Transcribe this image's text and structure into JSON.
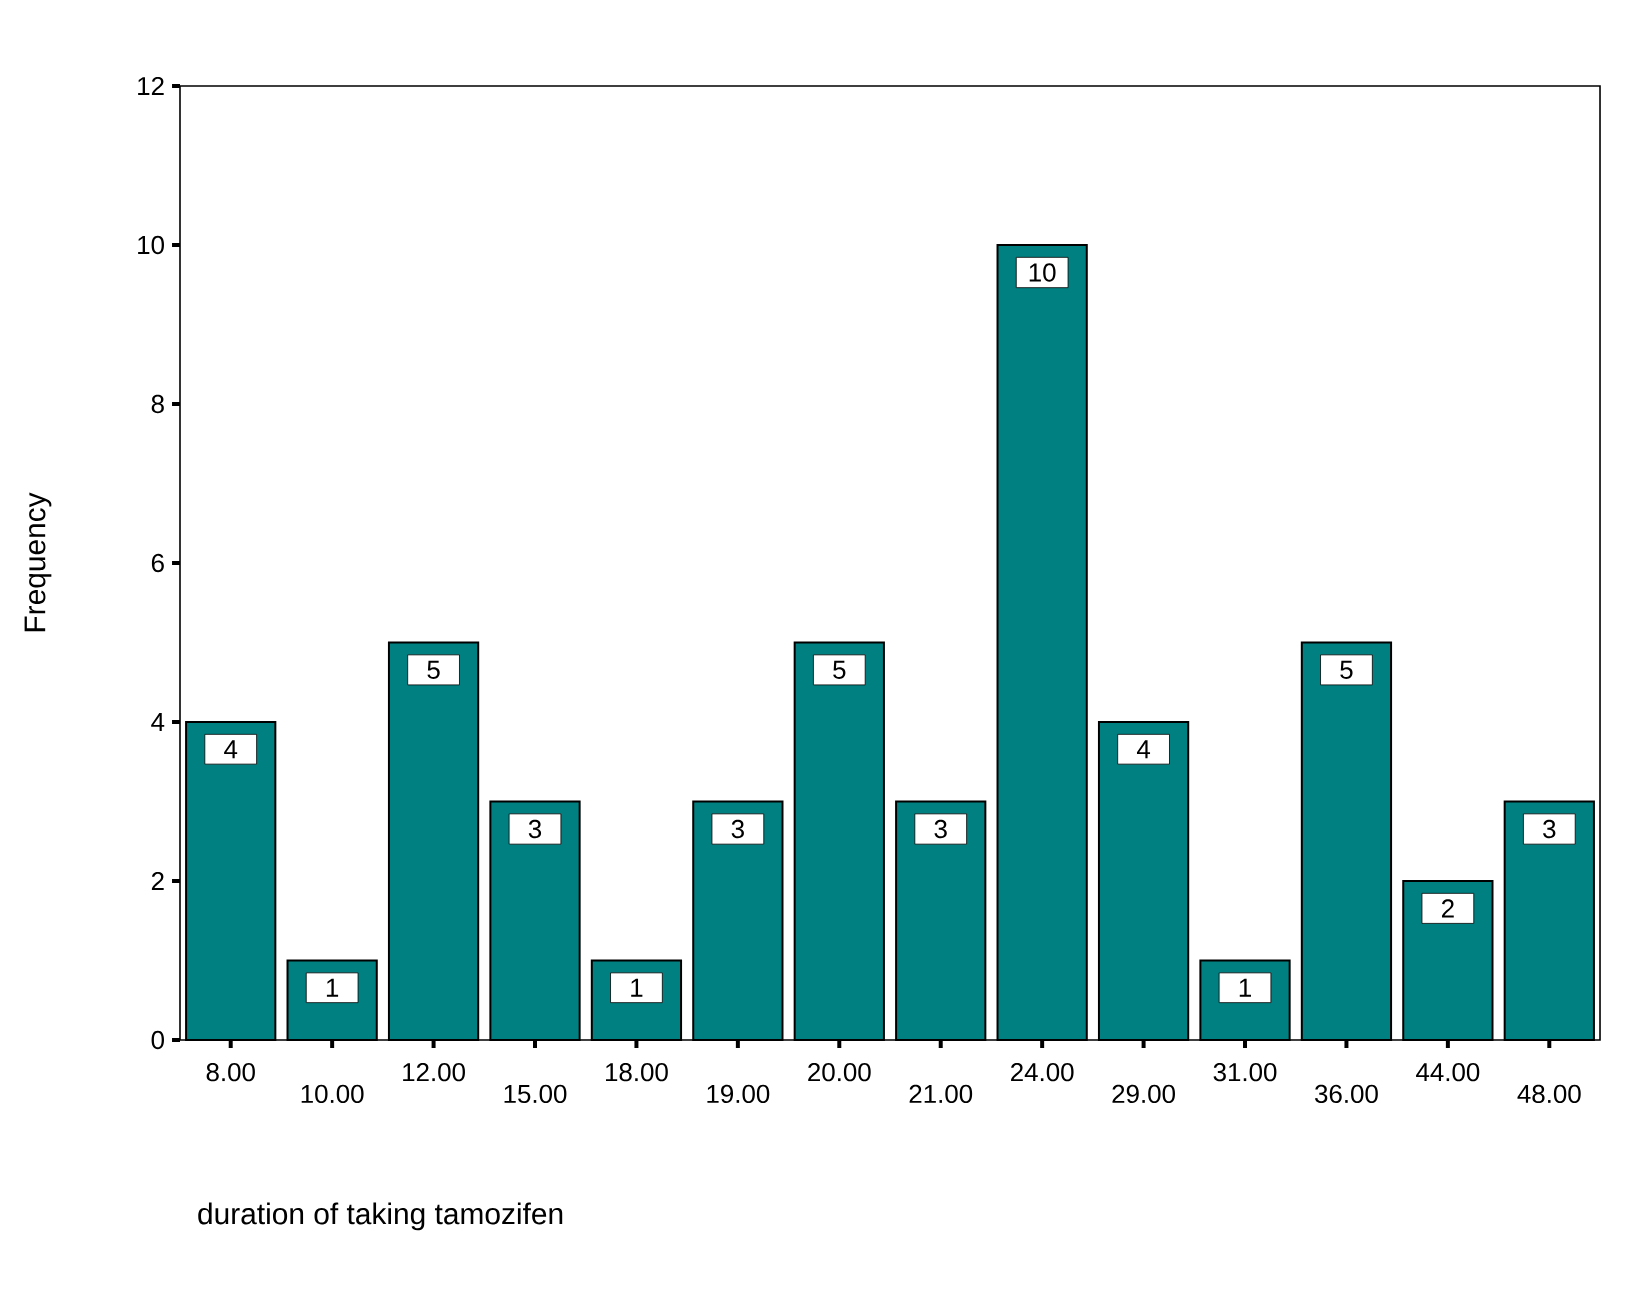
{
  "chart_data": {
    "type": "bar",
    "xlabel": "duration of taking tamozifen",
    "ylabel": "Frequency",
    "categories": [
      "8.00",
      "10.00",
      "12.00",
      "15.00",
      "18.00",
      "19.00",
      "20.00",
      "21.00",
      "24.00",
      "29.00",
      "31.00",
      "36.00",
      "44.00",
      "48.00"
    ],
    "values": [
      4,
      1,
      5,
      3,
      1,
      3,
      5,
      3,
      10,
      4,
      1,
      5,
      2,
      3
    ],
    "color": "#008080",
    "ylim": [
      0,
      12
    ],
    "yticks": [
      0,
      2,
      4,
      6,
      8,
      10,
      12
    ],
    "data_labels": true
  }
}
